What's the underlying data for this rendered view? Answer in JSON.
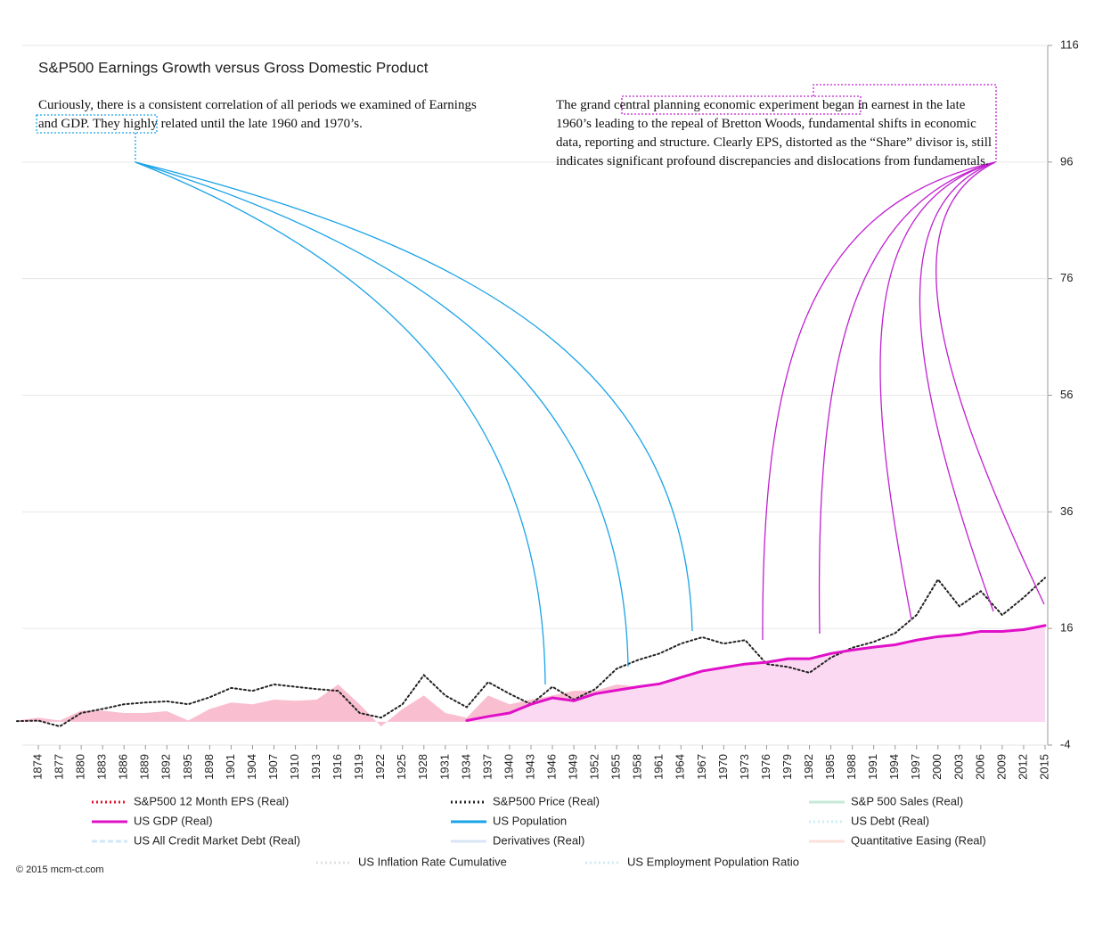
{
  "chart_data": {
    "type": "line",
    "title": "S&P500 Earnings Growth versus Gross Domestic Product",
    "annotations": [
      "Curiously, there is a consistent correlation of all periods we examined of Earnings and GDP. They highly related until the late 1960 and 1970’s.",
      "The grand central planning economic experiment began in earnest in the late 1960’s leading to the repeal of Bretton Woods, fundamental shifts in economic data, reporting and structure. Clearly EPS, distorted as the “Share” divisor is, still indicates significant profound discrepancies and dislocations from fundamentals."
    ],
    "footer": "© 2015 mcm-ct.com",
    "x": [
      1871,
      1874,
      1877,
      1880,
      1883,
      1886,
      1889,
      1892,
      1895,
      1898,
      1901,
      1904,
      1907,
      1910,
      1913,
      1916,
      1919,
      1922,
      1925,
      1928,
      1931,
      1934,
      1937,
      1940,
      1943,
      1946,
      1949,
      1952,
      1955,
      1958,
      1961,
      1964,
      1967,
      1970,
      1973,
      1976,
      1979,
      1982,
      1985,
      1988,
      1991,
      1994,
      1997,
      2000,
      2003,
      2006,
      2009,
      2012,
      2015
    ],
    "xlim": [
      1871,
      2016
    ],
    "xticks": [
      1874,
      1877,
      1880,
      1883,
      1886,
      1889,
      1892,
      1895,
      1898,
      1901,
      1904,
      1907,
      1910,
      1913,
      1916,
      1919,
      1922,
      1925,
      1928,
      1931,
      1934,
      1937,
      1940,
      1943,
      1946,
      1949,
      1952,
      1955,
      1958,
      1961,
      1964,
      1967,
      1970,
      1973,
      1976,
      1979,
      1982,
      1985,
      1988,
      1991,
      1994,
      1997,
      2000,
      2003,
      2006,
      2009,
      2012,
      2015
    ],
    "ylim": [
      -4,
      116
    ],
    "yticks": [
      -4,
      16,
      36,
      56,
      76,
      96,
      116
    ],
    "grid": true,
    "series": [
      {
        "name": "S&P500 12 Month EPS (Real)",
        "color": "#e8102a",
        "style": "dotted",
        "fill": "#f9bfd0",
        "values": [
          0.2,
          0.7,
          0.2,
          1.9,
          1.9,
          1.5,
          1.5,
          1.8,
          0.2,
          2.2,
          3.3,
          3,
          3.8,
          3.6,
          3.8,
          6.4,
          3,
          -0.8,
          2.2,
          4.5,
          1.5,
          0.7,
          4.5,
          3,
          3.8,
          4.5,
          5.3,
          5.3,
          6.4,
          6,
          5.8,
          6.8,
          6.8,
          6.8,
          7.9,
          8.4,
          8.8,
          6.8,
          8.4,
          9.4,
          6.8,
          8.4,
          9.9,
          10.6,
          7.6,
          12.3,
          4.5,
          13.4,
          14
        ]
      },
      {
        "name": "S&P500 Price (Real)",
        "color": "#222222",
        "style": "dotted",
        "values": [
          0.1,
          0.2,
          -0.8,
          1.5,
          2.2,
          3,
          3.3,
          3.5,
          3,
          4.2,
          5.8,
          5.3,
          6.4,
          6,
          5.6,
          5.3,
          1.5,
          0.7,
          3,
          8,
          4.5,
          2.5,
          6.8,
          4.8,
          3,
          6,
          3.8,
          5.6,
          9.1,
          10.6,
          11.7,
          13.4,
          14.5,
          13.4,
          14,
          9.9,
          9.4,
          8.4,
          11,
          12.7,
          13.7,
          15.2,
          18.3,
          24.4,
          19.8,
          22.4,
          18.3,
          21.3,
          24.7
        ]
      },
      {
        "name": "S&P 500 Sales (Real)",
        "color": "#9ad8b8",
        "style": "solid",
        "dimmed": true
      },
      {
        "name": "US GDP (Real)",
        "color": "#e010c8",
        "style": "solid",
        "fill": "#fcd9f2",
        "values": [
          null,
          null,
          null,
          null,
          null,
          null,
          null,
          null,
          null,
          null,
          null,
          null,
          null,
          null,
          null,
          null,
          null,
          null,
          null,
          null,
          null,
          0.2,
          0.9,
          1.5,
          3,
          4.1,
          3.6,
          4.8,
          5.4,
          6,
          6.5,
          7.6,
          8.7,
          9.3,
          9.9,
          10.2,
          10.8,
          10.8,
          11.7,
          12.3,
          12.8,
          13.2,
          14,
          14.6,
          14.9,
          15.5,
          15.5,
          15.8,
          16.5
        ]
      },
      {
        "name": "US Population",
        "color": "#1aa3e8",
        "style": "solid"
      },
      {
        "name": "US Debt (Real)",
        "color": "#9fe3ef",
        "style": "dotted",
        "dimmed": true
      },
      {
        "name": "US All Credit Market Debt (Real)",
        "color": "#a9d4f2",
        "style": "dashed",
        "dimmed": true
      },
      {
        "name": "Derivatives  (Real)",
        "color": "#b9d3f0",
        "style": "solid",
        "dimmed": true
      },
      {
        "name": "Quantitative Easing (Real)",
        "color": "#f8c8bc",
        "style": "solid",
        "dimmed": true
      },
      {
        "name": "US Inflation Rate Cumulative",
        "color": "#c8c8c8",
        "style": "dotted",
        "dimmed": true
      },
      {
        "name": "US Employment Population Ratio",
        "color": "#a8dde8",
        "style": "dotted",
        "dimmed": true
      }
    ]
  }
}
